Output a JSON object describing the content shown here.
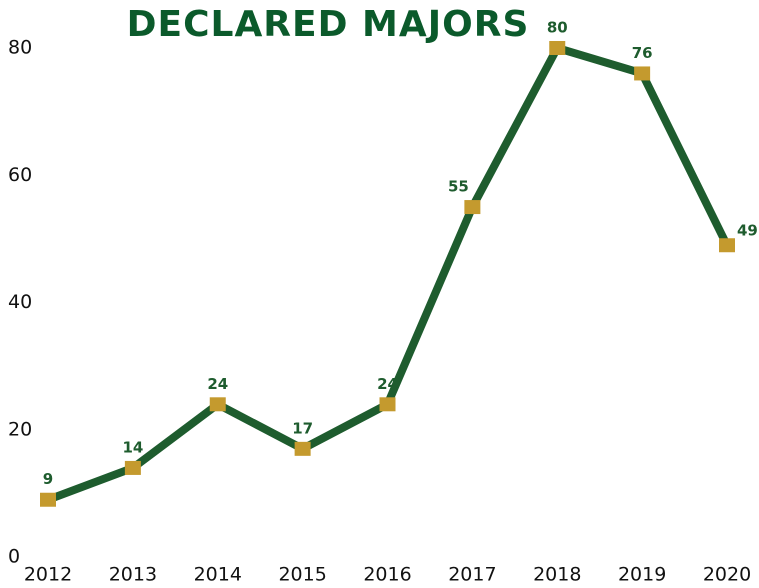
{
  "chart_data": {
    "type": "line",
    "title": "DECLARED MAJORS",
    "categories": [
      "2012",
      "2013",
      "2014",
      "2015",
      "2016",
      "2017",
      "2018",
      "2019",
      "2020"
    ],
    "values": [
      9,
      14,
      24,
      17,
      24,
      55,
      80,
      76,
      49
    ],
    "color": "#1e5c2e",
    "marker_color": "#c49a2e",
    "ylim": [
      0,
      80
    ],
    "yticks": [
      0,
      20,
      40,
      60,
      80
    ],
    "grid": false
  }
}
